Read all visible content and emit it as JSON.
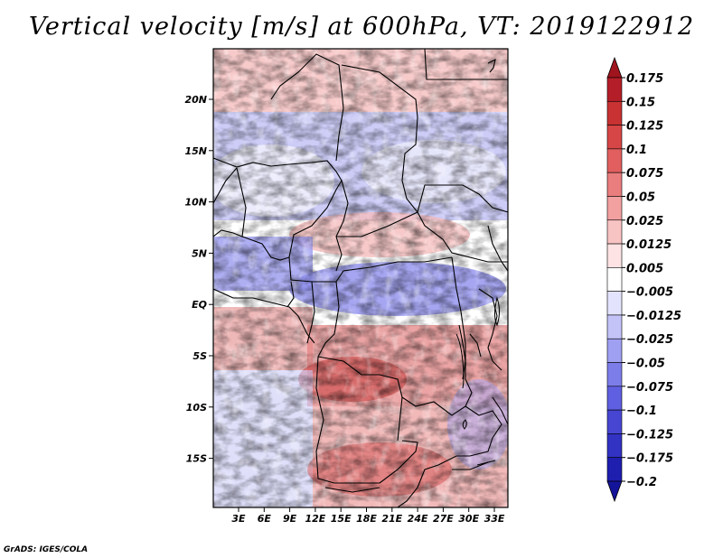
{
  "title": "Vertical velocity [m/s] at 600hPa, VT: 2019122912",
  "credit": "GrADS: IGES/COLA",
  "latitude_labels": [
    "20N",
    "15N",
    "10N",
    "5N",
    "EQ",
    "5S",
    "10S",
    "15S"
  ],
  "longitude_labels": [
    "3E",
    "6E",
    "9E",
    "12E",
    "15E",
    "18E",
    "21E",
    "24E",
    "27E",
    "30E",
    "33E"
  ],
  "colorbar": {
    "labels": [
      "0.175",
      "0.15",
      "0.125",
      "0.1",
      "0.075",
      "0.05",
      "0.025",
      "0.0125",
      "0.005",
      "-0.005",
      "-0.0125",
      "-0.025",
      "-0.05",
      "-0.075",
      "-0.1",
      "-0.125",
      "-0.175",
      "-0.2"
    ],
    "colors": [
      "#a0141e",
      "#b41e28",
      "#c83232",
      "#d74646",
      "#e15f5f",
      "#ea7d7d",
      "#f2a0a0",
      "#f8c3c3",
      "#fde3e3",
      "#ffffff",
      "#e3e3fd",
      "#c3c3f8",
      "#a0a0f2",
      "#7d7dea",
      "#5f5fe1",
      "#4646d2",
      "#3232c3",
      "#1e1eaf",
      "#14149b"
    ]
  },
  "icons": {
    "map": "vertical-velocity-field",
    "borders": "country-borders"
  }
}
